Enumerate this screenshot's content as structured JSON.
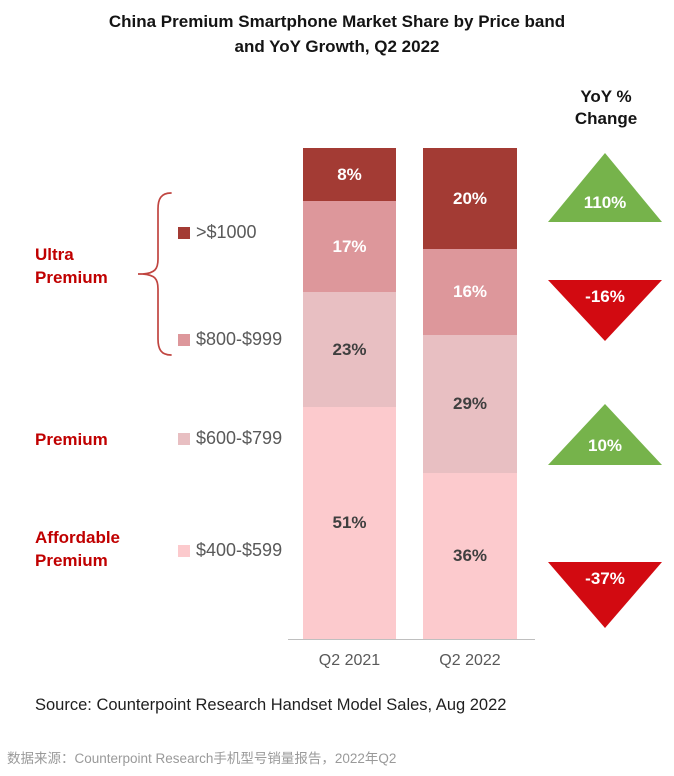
{
  "title_lines": [
    "China Premium Smartphone Market Share by Price band",
    "and YoY Growth, Q2 2022"
  ],
  "yoy_header_lines": [
    "YoY %",
    "Change"
  ],
  "band_labels": [
    [
      "Ultra",
      "Premium"
    ],
    [
      "Premium"
    ],
    [
      "Affordable",
      "Premium"
    ]
  ],
  "chart_data": {
    "type": "bar",
    "stacked": true,
    "categories": [
      "Q2 2021",
      "Q2 2022"
    ],
    "series": [
      {
        "name": ">$1000",
        "band": "Ultra Premium",
        "color": "#A33B34",
        "label_color": "#ffffff",
        "values": [
          8,
          20
        ]
      },
      {
        "name": "$800-$999",
        "band": "Ultra Premium",
        "color": "#DD979B",
        "label_color": "#ffffff",
        "values": [
          17,
          16
        ]
      },
      {
        "name": "$600-$799",
        "band": "Premium",
        "color": "#E8BFC2",
        "label_color": "#3f3f3f",
        "values": [
          23,
          29
        ]
      },
      {
        "name": "$400-$599",
        "band": "Affordable Premium",
        "color": "#FCCACD",
        "label_color": "#3f3f3f",
        "values": [
          51,
          36
        ]
      }
    ],
    "yoy_change": [
      {
        "label": "110%",
        "direction": "up",
        "color": "#76B34B"
      },
      {
        "label": "-16%",
        "direction": "down",
        "color": "#D20A11"
      },
      {
        "label": "10%",
        "direction": "up",
        "color": "#76B34B"
      },
      {
        "label": "-37%",
        "direction": "down",
        "color": "#D20A11"
      }
    ],
    "value_suffix": "%",
    "legend_position": "left",
    "grid": false
  },
  "colors": {
    "band_label": "#C00000",
    "brace": "#C04540",
    "axis_text": "#595959",
    "legend_text": "#595959"
  },
  "source": "Source: Counterpoint Research Handset Model Sales, Aug 2022",
  "source_cn": "数据来源：Counterpoint Research手机型号销量报告，2022年Q2"
}
